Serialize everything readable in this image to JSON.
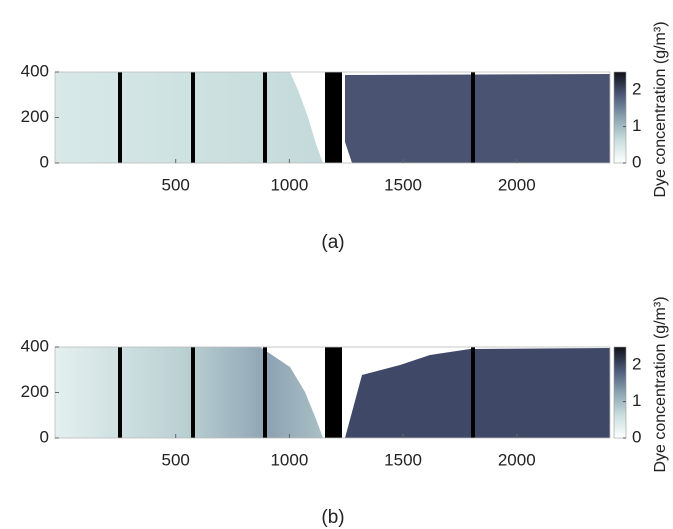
{
  "chart_data": [
    {
      "type": "heatmap",
      "caption": "(a)",
      "xlim": [
        0,
        2410
      ],
      "ylim": [
        0,
        400
      ],
      "xticks": [
        500,
        1000,
        1500,
        2000
      ],
      "yticks": [
        0,
        200,
        400
      ],
      "colorbar": {
        "label": "Dye concentration (g/m³)",
        "lim": [
          0,
          2.5
        ],
        "ticks": [
          0,
          1,
          2
        ]
      }
    },
    {
      "type": "heatmap",
      "caption": "(b)",
      "xlim": [
        0,
        2410
      ],
      "ylim": [
        0,
        400
      ],
      "xticks": [
        500,
        1000,
        1500,
        2000
      ],
      "yticks": [
        0,
        200,
        400
      ],
      "colorbar": {
        "label": "Dye concentration (g/m³)",
        "lim": [
          0,
          2.5
        ],
        "ticks": [
          0,
          1,
          2
        ]
      }
    }
  ]
}
